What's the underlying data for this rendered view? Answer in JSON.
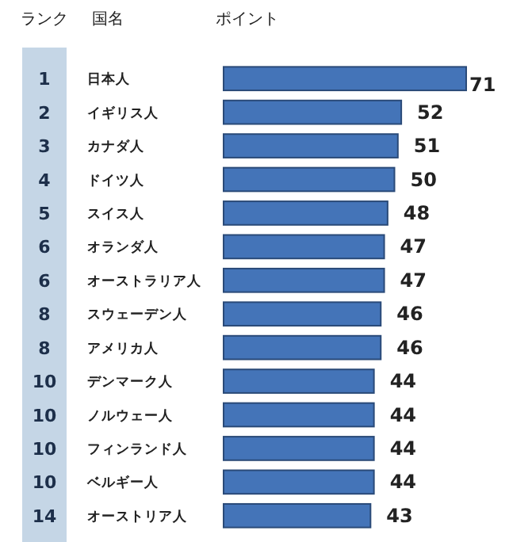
{
  "chart_data": {
    "type": "bar",
    "orientation": "horizontal",
    "xlabel": "ポイント",
    "ylabel": "国名",
    "categories": [
      "日本人",
      "イギリス人",
      "カナダ人",
      "ドイツ人",
      "スイス人",
      "オランダ人",
      "オーストラリア人",
      "スウェーデン人",
      "アメリカ人",
      "デンマーク人",
      "ノルウェー人",
      "フィンランド人",
      "ベルギー人",
      "オーストリア人"
    ],
    "values": [
      71,
      52,
      51,
      50,
      48,
      47,
      47,
      46,
      46,
      44,
      44,
      44,
      44,
      43
    ],
    "color": "#4474b8",
    "data_labels": true,
    "annotations": [
      "ランク",
      "1",
      "2",
      "3",
      "4",
      "5",
      "6",
      "6",
      "8",
      "8",
      "10",
      "10",
      "10",
      "10",
      "14"
    ]
  }
}
